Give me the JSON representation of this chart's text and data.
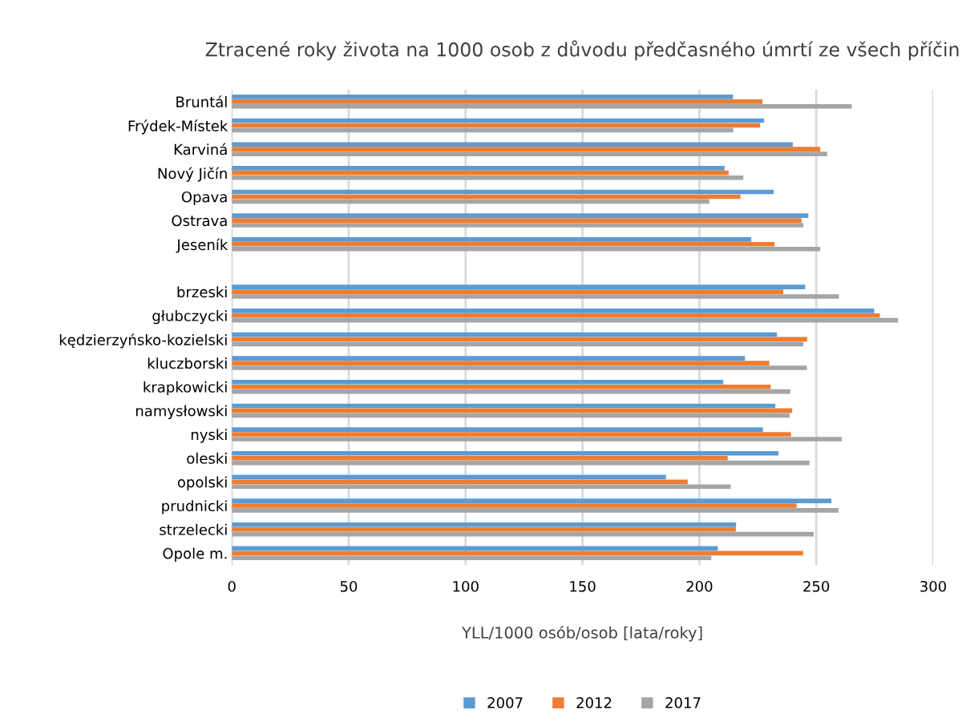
{
  "chart_data": {
    "type": "bar",
    "orientation": "horizontal",
    "title": "Ztracené roky života na 1000 osob z důvodu předčasného úmrtí ze všech příčin",
    "xlabel": "YLL/1000 osób/osob [lata/roky]",
    "categories": [
      "Bruntál",
      "Frýdek-Místek",
      "Karviná",
      "Nový Jičín",
      "Opava",
      "Ostrava",
      "Jeseník",
      null,
      "brzeski",
      "głubczycki",
      "kędzierzyńsko-kozielski",
      "kluczborski",
      "krapkowicki",
      "namysłowski",
      "nyski",
      "oleski",
      "opolski",
      "prudnicki",
      "strzelecki",
      "Opole m."
    ],
    "series": [
      {
        "name": "2007",
        "color": "#5b9bd5",
        "values": [
          214.4,
          227.7,
          240.0,
          210.8,
          231.8,
          246.6,
          222.2,
          null,
          245.3,
          274.8,
          233.2,
          219.5,
          210.2,
          232.5,
          227.2,
          233.8,
          185.7,
          256.5,
          215.7,
          207.9
        ]
      },
      {
        "name": "2012",
        "color": "#ed7d31",
        "values": [
          227.0,
          226.0,
          251.7,
          212.5,
          217.6,
          243.7,
          232.2,
          null,
          235.9,
          277.2,
          246.1,
          229.9,
          230.5,
          239.7,
          239.2,
          212.1,
          195.0,
          241.6,
          215.6,
          244.4
        ]
      },
      {
        "name": "2017",
        "color": "#a5a5a5",
        "values": [
          265.2,
          214.5,
          254.7,
          218.8,
          204.3,
          244.5,
          251.7,
          null,
          259.7,
          285.0,
          244.5,
          246.0,
          238.9,
          238.6,
          260.9,
          247.1,
          213.4,
          259.5,
          248.9,
          205.1
        ]
      }
    ],
    "xlim": [
      0,
      300
    ],
    "xticks": [
      0,
      50,
      100,
      150,
      200,
      250,
      300
    ],
    "grid": "x",
    "legend": "bottom"
  }
}
